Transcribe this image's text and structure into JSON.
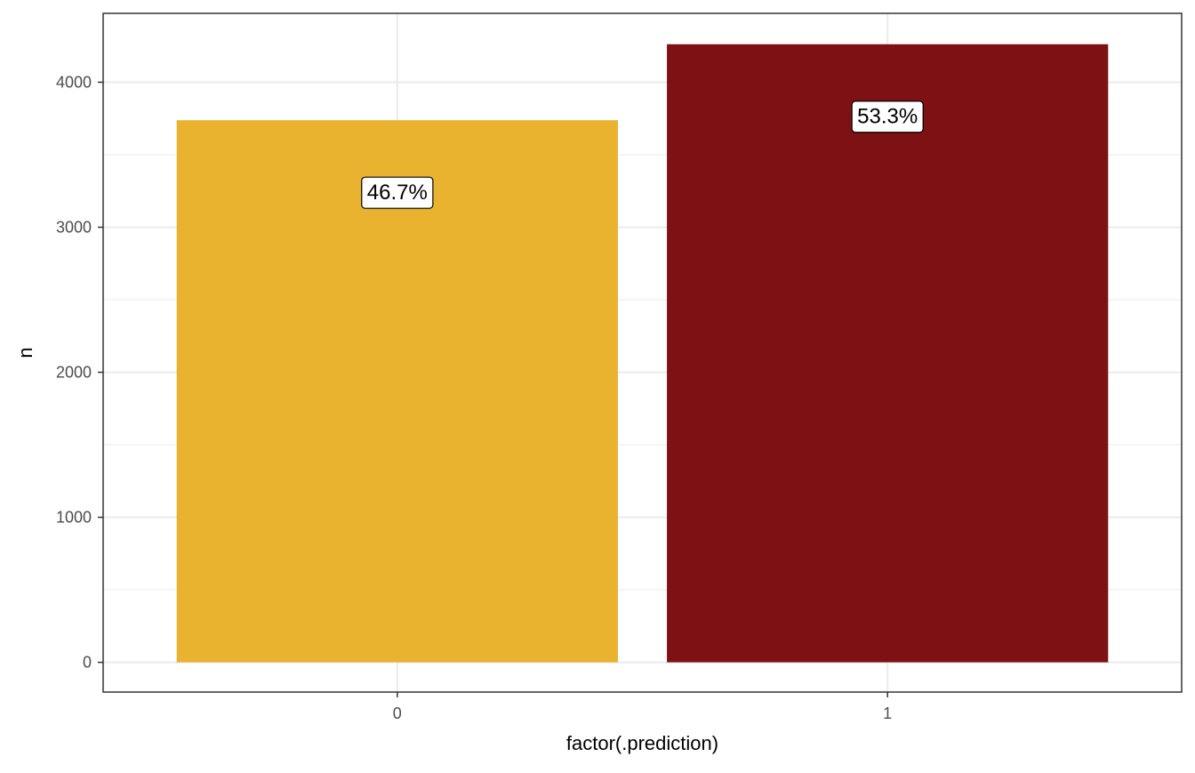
{
  "chart_data": {
    "type": "bar",
    "categories": [
      "0",
      "1"
    ],
    "values": [
      3738,
      4262
    ],
    "colors": [
      "#E9B22F",
      "#7D1114"
    ],
    "data_labels": [
      "46.7%",
      "53.3%"
    ],
    "xlabel": "factor(.prediction)",
    "ylabel": "n",
    "ylim": [
      -205,
      4475
    ],
    "yticks": [
      0,
      1000,
      2000,
      3000,
      4000
    ],
    "ytick_labels": [
      "0",
      "1000",
      "2000",
      "3000",
      "4000"
    ],
    "grid": true,
    "legend": "none"
  }
}
